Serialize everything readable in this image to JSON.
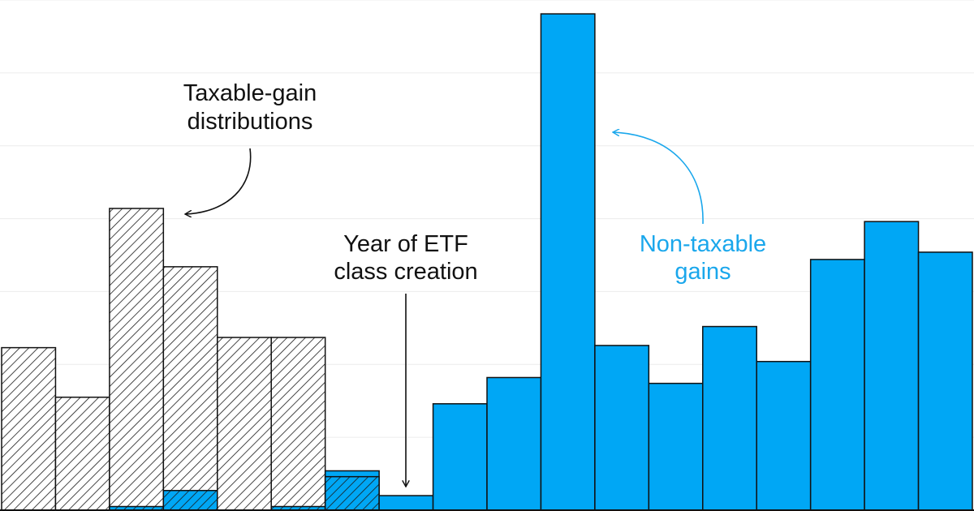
{
  "chart_data": {
    "type": "bar",
    "stacked": true,
    "grid": true,
    "axes_visible": false,
    "ylim": [
      0,
      70
    ],
    "bars": [
      {
        "taxable": 22.3,
        "non_taxable": 0
      },
      {
        "taxable": 15.5,
        "non_taxable": 0
      },
      {
        "taxable": 41.4,
        "non_taxable": 0.5
      },
      {
        "taxable": 33.4,
        "non_taxable": 2.7
      },
      {
        "taxable": 23.7,
        "non_taxable": 0
      },
      {
        "taxable": 23.7,
        "non_taxable": 0.5
      },
      {
        "taxable": 4.6,
        "non_taxable": 5.4
      },
      {
        "taxable": 0,
        "non_taxable": 2.0
      },
      {
        "taxable": 0,
        "non_taxable": 14.6
      },
      {
        "taxable": 0,
        "non_taxable": 18.2
      },
      {
        "taxable": 0,
        "non_taxable": 68.1
      },
      {
        "taxable": 0,
        "non_taxable": 22.6
      },
      {
        "taxable": 0,
        "non_taxable": 17.4
      },
      {
        "taxable": 0,
        "non_taxable": 25.2
      },
      {
        "taxable": 0,
        "non_taxable": 20.4
      },
      {
        "taxable": 0,
        "non_taxable": 34.4
      },
      {
        "taxable": 0,
        "non_taxable": 39.6
      },
      {
        "taxable": 0,
        "non_taxable": 35.4
      }
    ],
    "annotations": {
      "taxable": {
        "line1": "Taxable-gain",
        "line2": "distributions"
      },
      "etf": {
        "line1": "Year of ETF",
        "line2": "class creation"
      },
      "non_taxable": {
        "line1": "Non-taxable",
        "line2": "gains"
      }
    },
    "colors": {
      "non_taxable": "#00a7f5",
      "hatch": "#1a1a1a",
      "stroke": "#111111",
      "grid": "#ececec",
      "blue_text": "#1aa7ec",
      "black_text": "#111111"
    }
  }
}
